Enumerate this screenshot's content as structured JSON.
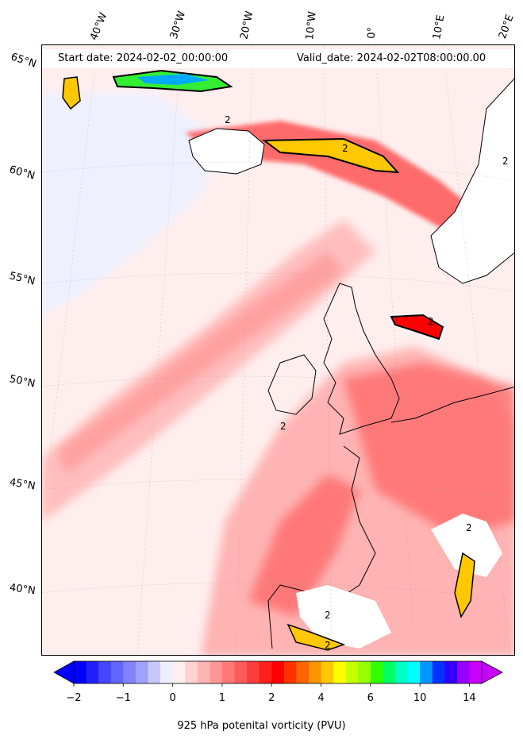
{
  "header": {
    "start_date": "Start date: 2024-02-02_00:00:00",
    "valid_date": "Valid_date: 2024-02-02T08:00:00.00"
  },
  "map": {
    "field": "925 hPa potential vorticity",
    "units": "PVU",
    "contour_level_label": "2",
    "longitude_labels": [
      "40°W",
      "30°W",
      "20°W",
      "10°W",
      "0°",
      "10°E",
      "20°E"
    ],
    "latitude_labels": [
      "65°N",
      "60°N",
      "55°N",
      "50°N",
      "45°N",
      "40°N"
    ],
    "colors": {
      "background_low": "#ffeeee",
      "pv_positive_weak": "#ffb3b3",
      "pv_positive_mid": "#ff4d4d",
      "pv_two": "#ff0000",
      "pv_high": "#ffc800",
      "pv_negative": "#eeeeff"
    }
  },
  "colorbar": {
    "label": "925 hPa potenital vorticity (PVU)",
    "tick_labels": [
      "−2",
      "−1",
      "0",
      "1",
      "2",
      "4",
      "6",
      "10",
      "14"
    ],
    "colors": [
      "#0000ff",
      "#2020ff",
      "#4646ff",
      "#6464ff",
      "#8282ff",
      "#a0a0ff",
      "#c8c8ff",
      "#eeeeff",
      "#ffeeee",
      "#ffd2d2",
      "#ffb4b4",
      "#ff9696",
      "#ff7878",
      "#ff5a5a",
      "#ff3c3c",
      "#ff1e1e",
      "#ff0000",
      "#ff3200",
      "#ff6400",
      "#ff9600",
      "#ffc800",
      "#ffff00",
      "#c8ff00",
      "#96ff00",
      "#32ff00",
      "#00ff64",
      "#00ffc8",
      "#00ffff",
      "#0096ff",
      "#0032ff",
      "#3200ff",
      "#9600ff",
      "#c800ff"
    ]
  }
}
